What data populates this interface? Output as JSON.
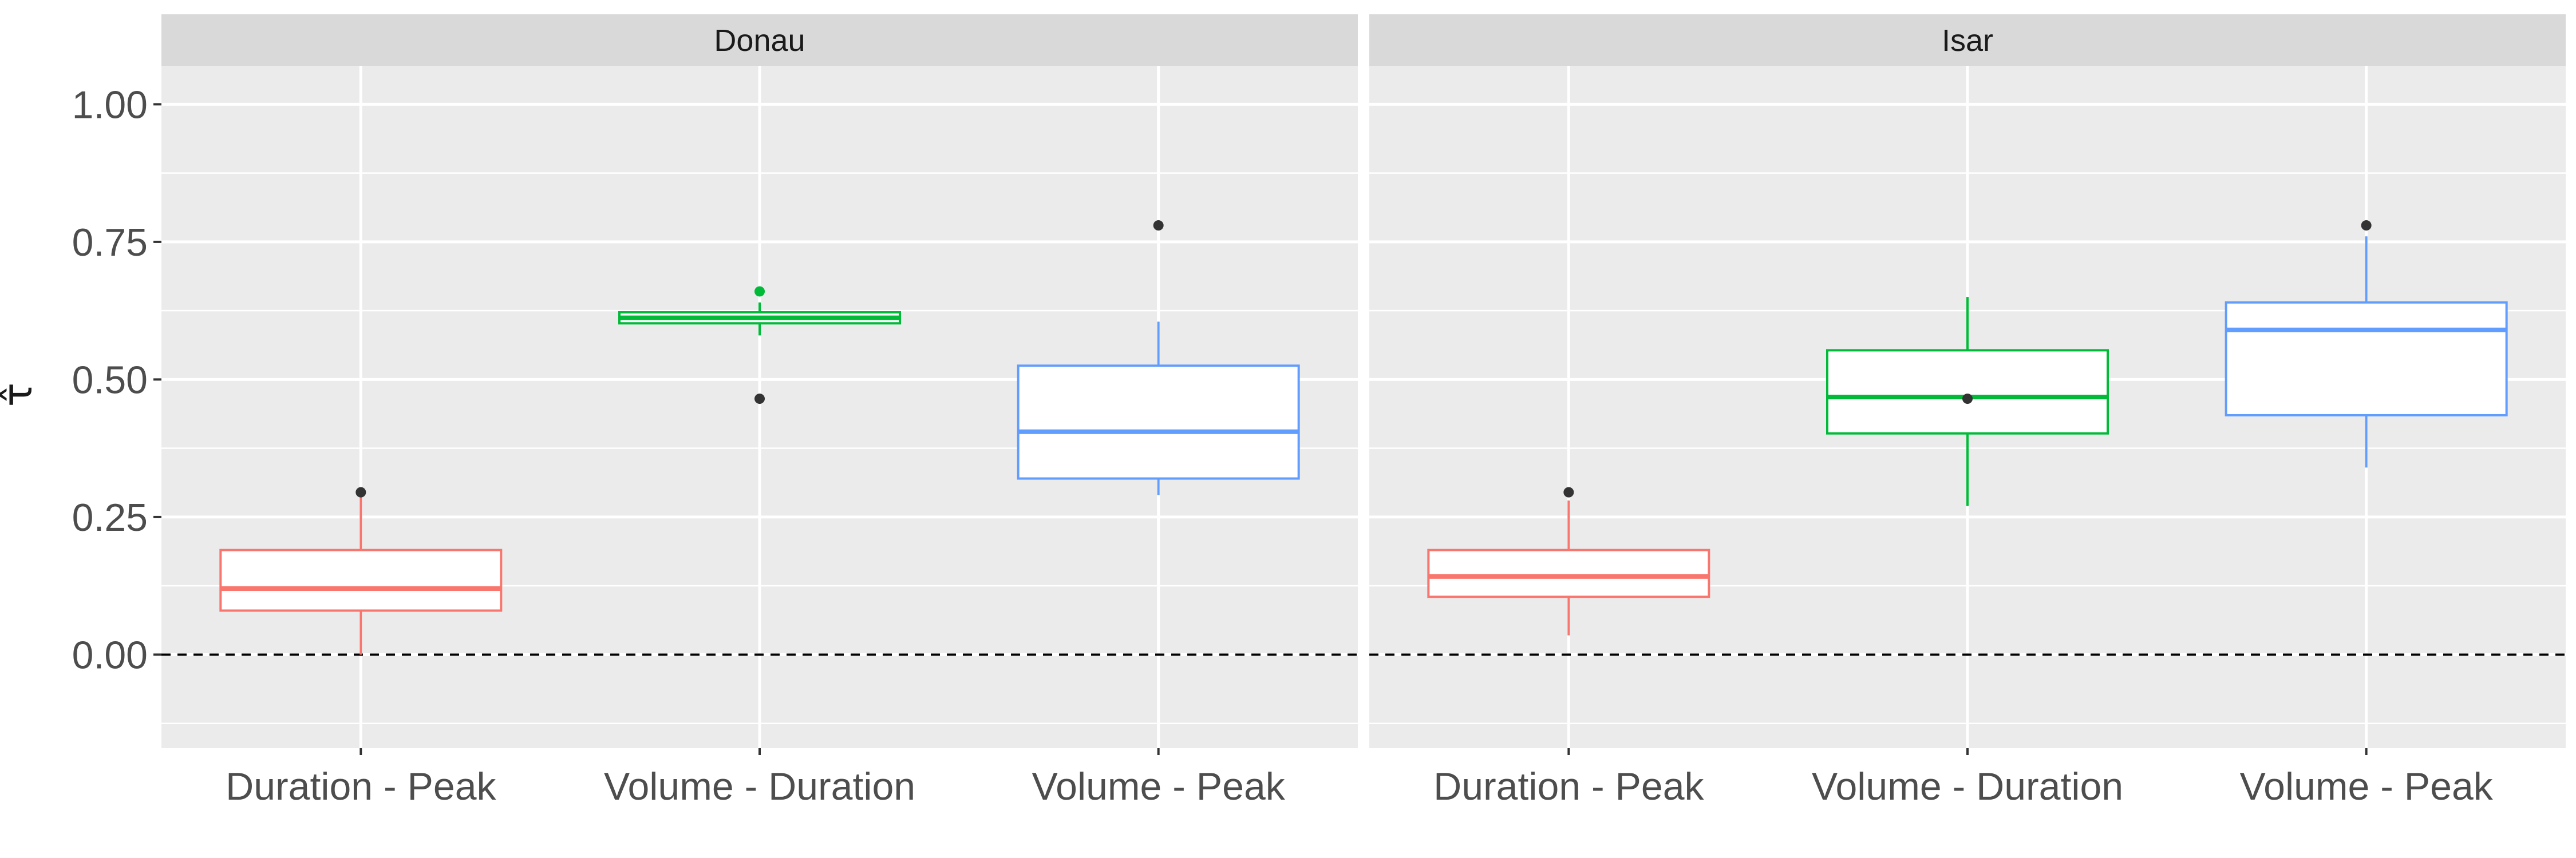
{
  "chart_data": {
    "type": "boxplot",
    "ylabel": "τ̂",
    "xlabel": "",
    "ylim": [
      -0.17,
      1.07
    ],
    "yticks": [
      0.0,
      0.25,
      0.5,
      0.75,
      1.0
    ],
    "ytick_labels": [
      "0.00",
      "0.25",
      "0.50",
      "0.75",
      "1.00"
    ],
    "reference_line": {
      "y": 0.0,
      "style": "dashed"
    },
    "grid": true,
    "legend": "none",
    "categories": [
      "Duration - Peak",
      "Volume - Duration",
      "Volume - Peak"
    ],
    "colors": {
      "Duration - Peak": "#F8766D",
      "Volume - Duration": "#00BA38",
      "Volume - Peak": "#619CFF",
      "outlier": "#333333",
      "panel_bg": "#EBEBEB",
      "strip_bg": "#D9D9D9"
    },
    "panels": [
      {
        "title": "Donau",
        "boxes": [
          {
            "category": "Duration - Peak",
            "whisker_low": 0.0,
            "q1": 0.08,
            "median": 0.12,
            "q3": 0.19,
            "whisker_high": 0.29,
            "outliers": [
              0.295
            ]
          },
          {
            "category": "Volume - Duration",
            "whisker_low": 0.58,
            "q1": 0.602,
            "median": 0.612,
            "q3": 0.622,
            "whisker_high": 0.64,
            "outliers": [
              0.66,
              0.465
            ],
            "outlier_colors": [
              "#00BA38",
              "#333333"
            ]
          },
          {
            "category": "Volume - Peak",
            "whisker_low": 0.29,
            "q1": 0.32,
            "median": 0.405,
            "q3": 0.525,
            "whisker_high": 0.605,
            "outliers": [
              0.78
            ]
          }
        ]
      },
      {
        "title": "Isar",
        "boxes": [
          {
            "category": "Duration - Peak",
            "whisker_low": 0.035,
            "q1": 0.105,
            "median": 0.142,
            "q3": 0.19,
            "whisker_high": 0.28,
            "outliers": [
              0.295
            ]
          },
          {
            "category": "Volume - Duration",
            "whisker_low": 0.27,
            "q1": 0.402,
            "median": 0.468,
            "q3": 0.553,
            "whisker_high": 0.65,
            "outliers": [
              0.465
            ]
          },
          {
            "category": "Volume - Peak",
            "whisker_low": 0.34,
            "q1": 0.435,
            "median": 0.59,
            "q3": 0.64,
            "whisker_high": 0.76,
            "outliers": [
              0.78
            ]
          }
        ]
      }
    ]
  }
}
